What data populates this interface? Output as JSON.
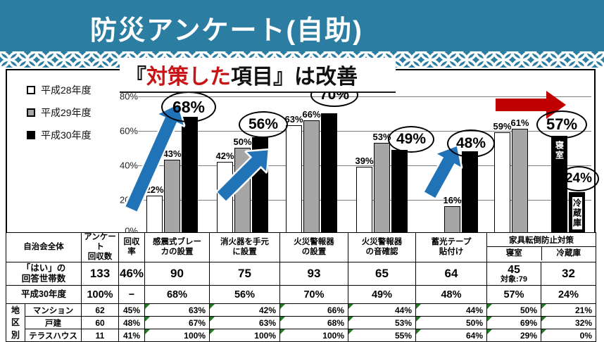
{
  "banner": {
    "title": "防災アンケート(自助)"
  },
  "subtitle": {
    "prefix": "『",
    "highlight": "対策した",
    "suffix": "項目』は改善"
  },
  "colors": {
    "banner_bg": "#2b7ea1",
    "highlight_red": "#c81414",
    "arrow_blue": "#2173b8",
    "arrow_red": "#c00000",
    "bar_white": "#ffffff",
    "bar_gray": "#a6a6a6",
    "bar_black": "#000000",
    "comment_marker_green": "#217a21"
  },
  "chart_data": {
    "type": "bar",
    "title": "『対策した項目』は改善",
    "ylabel": "",
    "xlabel": "",
    "ylim": [
      0,
      80
    ],
    "yticks": [
      "80%",
      "60%",
      "40%",
      "20%",
      "0%"
    ],
    "grid": true,
    "legend_position": "top-left",
    "legend": [
      {
        "label": "平成28年度",
        "color": "#ffffff"
      },
      {
        "label": "平成29年度",
        "color": "#a6a6a6"
      },
      {
        "label": "平成30年度",
        "color": "#000000"
      }
    ],
    "groups": [
      {
        "category": "感震式ブレーカの設置",
        "bars": [
          {
            "series": "平成28年度",
            "value": 22,
            "label": "22%"
          },
          {
            "series": "平成29年度",
            "value": 43,
            "label": "43%"
          },
          {
            "series": "平成30年度",
            "value": 68,
            "label": "68%",
            "circled": true
          }
        ]
      },
      {
        "category": "消火器を手元に設置",
        "bars": [
          {
            "series": "平成28年度",
            "value": 42,
            "label": "42%"
          },
          {
            "series": "平成29年度",
            "value": 50,
            "label": "50%"
          },
          {
            "series": "平成30年度",
            "value": 56,
            "label": "56%",
            "circled": true
          }
        ]
      },
      {
        "category": "火災警報器の設置",
        "bars": [
          {
            "series": "平成28年度",
            "value": 63,
            "label": "63%"
          },
          {
            "series": "平成29年度",
            "value": 66,
            "label": "66%"
          },
          {
            "series": "平成30年度",
            "value": 70,
            "label": "70%",
            "circled": true
          }
        ]
      },
      {
        "category": "火災警報器の音確認",
        "bars": [
          {
            "series": "平成28年度",
            "value": 39,
            "label": "39%"
          },
          {
            "series": "平成29年度",
            "value": 53,
            "label": "53%"
          },
          {
            "series": "平成30年度",
            "value": 49,
            "label": "49%",
            "circled": true
          }
        ]
      },
      {
        "category": "蓄光テープ貼付け",
        "bars": [
          {
            "series": "平成29年度",
            "value": 16,
            "label": "16%"
          },
          {
            "series": "平成30年度",
            "value": 48,
            "label": "48%",
            "circled": true
          }
        ]
      },
      {
        "category": "家具転倒防止対策",
        "bars": [
          {
            "series": "平成28年度",
            "value": 59,
            "label": "59%"
          },
          {
            "series": "平成29年度",
            "value": 61,
            "label": "61%"
          },
          {
            "series": "平成30年度",
            "value": 57,
            "label": "57%",
            "circled": true,
            "inner_label": "寝室",
            "inner_style": "on-black"
          },
          {
            "series": "平成30年度",
            "value": 24,
            "label": "24%",
            "circled": true,
            "inner_label": "冷蔵庫",
            "inner_style": "white-chip"
          }
        ]
      }
    ]
  },
  "table": {
    "corner_label": "自治会全体",
    "col_count": "アンケート\n回収数",
    "col_rate": "回収\n率",
    "item_headers": [
      "感震式ブレー\nカの設置",
      "消火器を手元\nに設置",
      "火災警報器\nの設置",
      "火災警報器\nの音確認",
      "蓄光テープ\n貼付け"
    ],
    "furniture_header": "家具転倒防止対策",
    "furniture_sub": [
      "寝室",
      "冷蔵庫"
    ],
    "summary_rows": [
      {
        "label": "「はい」の\n回答世帯数",
        "count": "133",
        "rate": "46%",
        "values": [
          "90",
          "75",
          "93",
          "65",
          "64",
          "45\n対象:79",
          "32"
        ]
      },
      {
        "label": "平成30年度",
        "count": "100%",
        "rate": "−",
        "values": [
          "68%",
          "56%",
          "70%",
          "49%",
          "48%",
          "57%",
          "24%"
        ]
      }
    ],
    "district": {
      "label": "地区別",
      "rows": [
        {
          "label": "マンション",
          "count": "62",
          "rate": "45%",
          "values": [
            "63%",
            "42%",
            "66%",
            "44%",
            "44%",
            "50%",
            "21%"
          ]
        },
        {
          "label": "戸建",
          "count": "60",
          "rate": "48%",
          "values": [
            "67%",
            "63%",
            "68%",
            "53%",
            "50%",
            "69%",
            "32%"
          ]
        },
        {
          "label": "テラスハウス",
          "count": "11",
          "rate": "41%",
          "values": [
            "100%",
            "100%",
            "100%",
            "55%",
            "64%",
            "29%",
            "0%"
          ]
        }
      ]
    }
  }
}
